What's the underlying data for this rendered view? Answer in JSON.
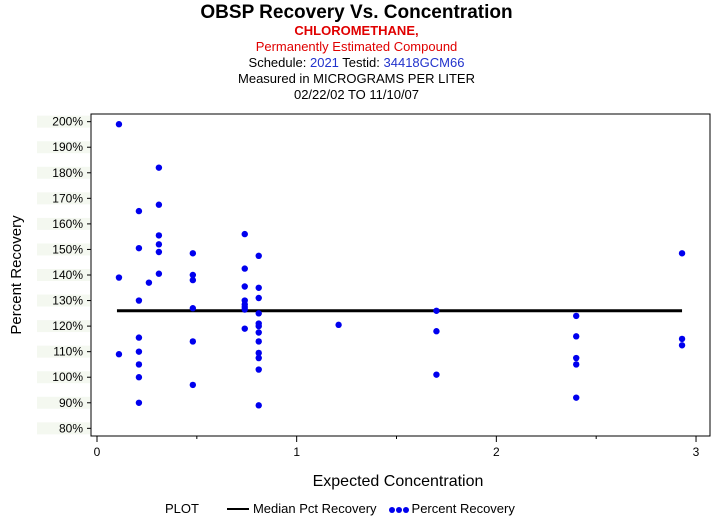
{
  "header": {
    "title": "OBSP Recovery Vs. Concentration",
    "compound": "CHLOROMETHANE,",
    "compound_note": "Permanently Estimated Compound",
    "schedule_label": "Schedule:",
    "schedule": "2021",
    "testid_label": "Testid:",
    "testid": "34418GCM66",
    "units_line": "Measured in  MICROGRAMS PER LITER",
    "date_range": "02/22/02 TO 11/10/07"
  },
  "legend": {
    "prefix": "PLOT",
    "median_label": "Median Pct Recovery",
    "points_label": "Percent Recovery"
  },
  "colors": {
    "points": "#0000ee",
    "median_line": "#000000",
    "title_red": "#e00000",
    "link_blue": "#2233cc"
  },
  "chart_data": {
    "type": "scatter",
    "title": "OBSP Recovery Vs. Concentration",
    "xlabel": "Expected Concentration",
    "ylabel": "Percent Recovery",
    "xlim": [
      -0.03,
      3.07
    ],
    "ylim": [
      77,
      203
    ],
    "x_ticks": [
      0,
      1,
      2,
      3
    ],
    "x_tick_labels": [
      "0",
      "1",
      "2",
      "3"
    ],
    "x_minor_ticks": [
      0.5,
      1.5,
      2.5
    ],
    "y_ticks": [
      80,
      90,
      100,
      110,
      120,
      130,
      140,
      150,
      160,
      170,
      180,
      190,
      200
    ],
    "y_tick_labels": [
      "80%",
      "90%",
      "100%",
      "110%",
      "120%",
      "130%",
      "140%",
      "150%",
      "160%",
      "170%",
      "180%",
      "190%",
      "200%"
    ],
    "median": {
      "name": "Median Pct Recovery",
      "y": 126,
      "x_range": [
        0.1,
        2.93
      ]
    },
    "series": [
      {
        "name": "Percent Recovery",
        "points": [
          [
            0.11,
            199
          ],
          [
            0.11,
            139
          ],
          [
            0.11,
            109
          ],
          [
            0.21,
            165
          ],
          [
            0.21,
            150.5
          ],
          [
            0.21,
            130
          ],
          [
            0.21,
            115.5
          ],
          [
            0.21,
            110
          ],
          [
            0.21,
            105
          ],
          [
            0.21,
            100
          ],
          [
            0.21,
            90
          ],
          [
            0.26,
            137
          ],
          [
            0.31,
            182
          ],
          [
            0.31,
            167.5
          ],
          [
            0.31,
            155.5
          ],
          [
            0.31,
            152
          ],
          [
            0.31,
            149
          ],
          [
            0.31,
            140.5
          ],
          [
            0.48,
            148.5
          ],
          [
            0.48,
            140
          ],
          [
            0.48,
            138
          ],
          [
            0.48,
            127
          ],
          [
            0.48,
            114
          ],
          [
            0.48,
            97
          ],
          [
            0.74,
            156
          ],
          [
            0.74,
            142.5
          ],
          [
            0.74,
            135.5
          ],
          [
            0.74,
            130
          ],
          [
            0.74,
            128.5
          ],
          [
            0.74,
            127.5
          ],
          [
            0.74,
            126.5
          ],
          [
            0.74,
            119
          ],
          [
            0.81,
            147.5
          ],
          [
            0.81,
            135
          ],
          [
            0.81,
            131
          ],
          [
            0.81,
            125
          ],
          [
            0.81,
            121
          ],
          [
            0.81,
            120
          ],
          [
            0.81,
            117.5
          ],
          [
            0.81,
            114
          ],
          [
            0.81,
            109.5
          ],
          [
            0.81,
            107.5
          ],
          [
            0.81,
            103
          ],
          [
            0.81,
            89
          ],
          [
            1.21,
            120.5
          ],
          [
            1.7,
            126
          ],
          [
            1.7,
            118
          ],
          [
            1.7,
            101
          ],
          [
            2.4,
            124
          ],
          [
            2.4,
            116
          ],
          [
            2.4,
            107.5
          ],
          [
            2.4,
            105
          ],
          [
            2.4,
            92
          ],
          [
            2.93,
            148.5
          ],
          [
            2.93,
            115
          ],
          [
            2.93,
            112.5
          ]
        ]
      }
    ]
  }
}
